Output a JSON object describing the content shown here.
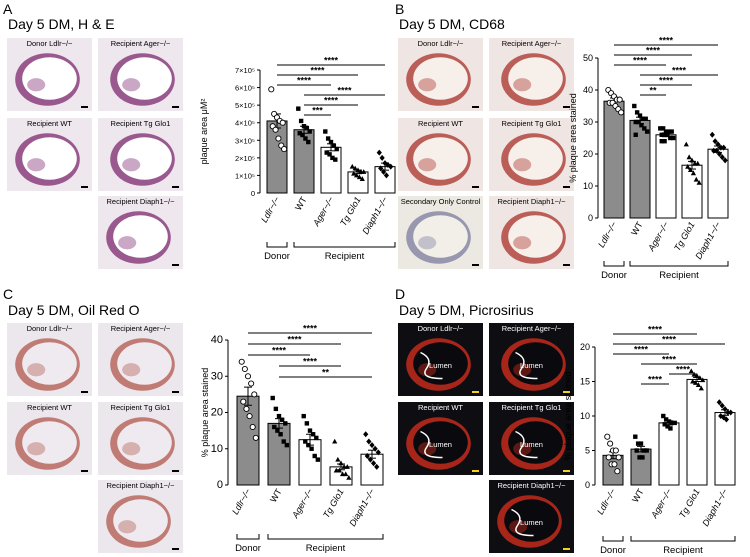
{
  "colors": {
    "dm_fill": "#8c8c8c",
    "other_fill": "#ffffff",
    "stroke": "#000000",
    "he_tissue": "#8a3f7e",
    "cd68_tissue": "#b2453f",
    "oro_tissue": "#b8685f",
    "pic_bg": "#0d0d12",
    "pic_tissue": "#c42a1c",
    "scale_yellow": "#f2d21b",
    "lumen_line": "#ffffff"
  },
  "panels": [
    {
      "letter": "A",
      "title": "Day 5 DM, H & E",
      "images": [
        {
          "label": "Donor Ldlr−/−",
          "stain": "he"
        },
        {
          "label": "Recipient Ager−/−",
          "stain": "he"
        },
        {
          "label": "Recipient WT",
          "stain": "he"
        },
        {
          "label": "Recipient Tg Glo1",
          "stain": "he"
        },
        {
          "label": "Recipient Diaph1−/−",
          "stain": "he"
        }
      ]
    },
    {
      "letter": "B",
      "title": "Day 5 DM, CD68",
      "images": [
        {
          "label": "Donor Ldlr−/−",
          "stain": "cd68"
        },
        {
          "label": "Recipient Ager−/−",
          "stain": "cd68"
        },
        {
          "label": "Recipient WT",
          "stain": "cd68"
        },
        {
          "label": "Recipient Tg Glo1",
          "stain": "cd68"
        },
        {
          "label": "Secondary Only Control",
          "stain": "control"
        },
        {
          "label": "Recipient Diaph1−/−",
          "stain": "cd68"
        }
      ]
    },
    {
      "letter": "C",
      "title": "Day 5 DM, Oil Red O",
      "images": [
        {
          "label": "Donor Ldlr−/−",
          "stain": "oro"
        },
        {
          "label": "Recipient Ager−/−",
          "stain": "oro"
        },
        {
          "label": "Recipient WT",
          "stain": "oro"
        },
        {
          "label": "Recipient Tg Glo1",
          "stain": "oro"
        },
        {
          "label": "Recipient Diaph1−/−",
          "stain": "oro"
        }
      ]
    },
    {
      "letter": "D",
      "title": "Day 5 DM, Picrosirius",
      "images": [
        {
          "label": "Donor Ldlr−/−",
          "stain": "pic",
          "lumen": "Lumen"
        },
        {
          "label": "Recipient Ager−/−",
          "stain": "pic",
          "lumen": "Lumen"
        },
        {
          "label": "Recipient WT",
          "stain": "pic",
          "lumen": "Lumen"
        },
        {
          "label": "Recipient Tg Glo1",
          "stain": "pic",
          "lumen": "Lumen"
        },
        {
          "label": "Recipient Diaph1−/−",
          "stain": "pic",
          "lumen": "Lumen"
        }
      ]
    }
  ],
  "chart_data": [
    {
      "panel": "A",
      "type": "bar",
      "categories": [
        "Ldlr−/−",
        "WT",
        "Ager−/−",
        "Tg Glo1",
        "Diaph1−/−"
      ],
      "values": [
        410000,
        360000,
        260000,
        120000,
        150000
      ],
      "errors": [
        40000,
        20000,
        20000,
        10000,
        20000
      ],
      "points": [
        [
          590000,
          450000,
          430000,
          410000,
          400000,
          380000,
          360000,
          310000,
          270000,
          250000
        ],
        [
          480000,
          410000,
          380000,
          370000,
          350000,
          340000,
          330000,
          310000,
          290000
        ],
        [
          350000,
          310000,
          290000,
          270000,
          250000,
          230000,
          220000,
          200000,
          190000
        ],
        [
          150000,
          140000,
          130000,
          120000,
          120000,
          110000,
          100000,
          90000,
          80000
        ],
        [
          230000,
          200000,
          170000,
          160000,
          150000,
          140000,
          120000,
          100000
        ]
      ],
      "ylabel": "plaque area μM²",
      "ylim": [
        0,
        700000
      ],
      "yticks": [
        "0",
        "1×10⁵",
        "2×10⁵",
        "3×10⁵",
        "4×10⁵",
        "5×10⁵",
        "6×10⁵",
        "7×10⁵"
      ],
      "groups": [
        "Donor",
        "Recipient"
      ],
      "comparisons": [
        {
          "from": 0,
          "to": 4,
          "label": "****"
        },
        {
          "from": 0,
          "to": 3,
          "label": "****"
        },
        {
          "from": 0,
          "to": 2,
          "label": "****"
        },
        {
          "from": 1,
          "to": 4,
          "label": "****"
        },
        {
          "from": 1,
          "to": 3,
          "label": "****"
        },
        {
          "from": 1,
          "to": 2,
          "label": "***"
        }
      ]
    },
    {
      "panel": "B",
      "type": "bar",
      "categories": [
        "Ldlr−/−",
        "WT",
        "Ager−/−",
        "Tg Glo1",
        "Diaph1−/−"
      ],
      "values": [
        36.5,
        30.5,
        26,
        16.5,
        21.5
      ],
      "errors": [
        1,
        1,
        0.6,
        1.2,
        1
      ],
      "points": [
        [
          40,
          39,
          38,
          37,
          37,
          36,
          36,
          35,
          34,
          33
        ],
        [
          35,
          33,
          32,
          31,
          31,
          30,
          30,
          29,
          28,
          27,
          26
        ],
        [
          28,
          28,
          27,
          27,
          27,
          26,
          26,
          26,
          25,
          25,
          24,
          24
        ],
        [
          23,
          19,
          18,
          17,
          17,
          16,
          15,
          14,
          12,
          11
        ],
        [
          26,
          24,
          23,
          22,
          22,
          21,
          21,
          20,
          19,
          18
        ]
      ],
      "ylabel": "% plaque area stained",
      "ylim": [
        0,
        50
      ],
      "yticks": [
        "0",
        "10",
        "20",
        "30",
        "40",
        "50"
      ],
      "groups": [
        "Donor",
        "Recipient"
      ],
      "comparisons": [
        {
          "from": 0,
          "to": 4,
          "label": "****"
        },
        {
          "from": 0,
          "to": 3,
          "label": "****"
        },
        {
          "from": 0,
          "to": 2,
          "label": "****"
        },
        {
          "from": 1,
          "to": 4,
          "label": "****"
        },
        {
          "from": 1,
          "to": 3,
          "label": "****"
        },
        {
          "from": 1,
          "to": 2,
          "label": "**"
        }
      ]
    },
    {
      "panel": "C",
      "type": "bar",
      "categories": [
        "Ldlr−/−",
        "WT",
        "Ager−/−",
        "Tg Glo1",
        "Diaph1−/−"
      ],
      "values": [
        24.5,
        17,
        12.5,
        5,
        8.5
      ],
      "errors": [
        2.5,
        1.3,
        1.5,
        0.8,
        1.1
      ],
      "points": [
        [
          34,
          32,
          30,
          28,
          25,
          23,
          21,
          19,
          16,
          13
        ],
        [
          24,
          21,
          19,
          18,
          17,
          16,
          15,
          14,
          12,
          11
        ],
        [
          19,
          17,
          15,
          14,
          13,
          12,
          11,
          10,
          8,
          7
        ],
        [
          12,
          7,
          6,
          5,
          5,
          4,
          4,
          3,
          3,
          2
        ],
        [
          14,
          12,
          11,
          10,
          9,
          8,
          7,
          6,
          5
        ]
      ],
      "ylabel": "% plaque area stained",
      "ylim": [
        0,
        40
      ],
      "yticks": [
        "0",
        "10",
        "20",
        "30",
        "40"
      ],
      "groups": [
        "Donor",
        "Recipient"
      ],
      "comparisons": [
        {
          "from": 0,
          "to": 4,
          "label": "****"
        },
        {
          "from": 0,
          "to": 3,
          "label": "****"
        },
        {
          "from": 0,
          "to": 2,
          "label": "****"
        },
        {
          "from": 1,
          "to": 3,
          "label": "****"
        },
        {
          "from": 1,
          "to": 4,
          "label": "**"
        }
      ]
    },
    {
      "panel": "D",
      "type": "bar",
      "categories": [
        "Ldlr−/−",
        "WT",
        "Ager−/−",
        "Tg Glo1",
        "Diaph1−/−"
      ],
      "values": [
        4.3,
        5.2,
        9,
        15.3,
        10.5
      ],
      "errors": [
        0.5,
        0.4,
        0.3,
        0.3,
        0.4
      ],
      "points": [
        [
          7,
          6,
          5,
          5,
          4,
          4,
          3,
          3,
          2
        ],
        [
          7,
          6,
          6,
          5,
          5,
          5,
          4,
          4
        ],
        [
          10,
          9.5,
          9.2,
          9,
          9,
          8.8,
          8.5,
          8.2
        ],
        [
          16.5,
          16,
          15.8,
          15.5,
          15.2,
          15,
          14.8,
          14.5,
          14
        ],
        [
          12,
          11.5,
          11,
          10.5,
          10.5,
          10,
          9.8,
          9.5
        ]
      ],
      "ylabel": "% plaque area stained",
      "ylim": [
        0,
        20
      ],
      "yticks": [
        "0",
        "5",
        "10",
        "15",
        "20"
      ],
      "groups": [
        "Donor",
        "Recipient"
      ],
      "comparisons": [
        {
          "from": 0,
          "to": 3,
          "label": "****"
        },
        {
          "from": 0,
          "to": 4,
          "label": "****"
        },
        {
          "from": 0,
          "to": 2,
          "label": "****"
        },
        {
          "from": 1,
          "to": 3,
          "label": "****"
        },
        {
          "from": 2,
          "to": 3,
          "label": "****"
        },
        {
          "from": 1,
          "to": 2,
          "label": "****"
        }
      ]
    }
  ]
}
